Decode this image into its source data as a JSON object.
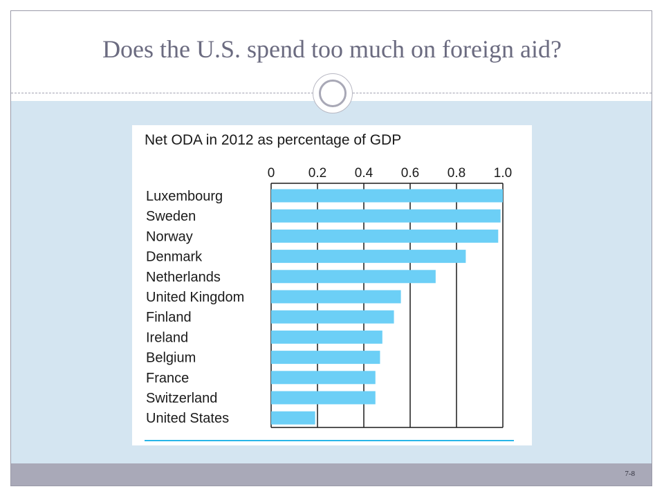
{
  "slide": {
    "title": "Does the U.S. spend too much on foreign aid?",
    "slide_number": "7-8",
    "colors": {
      "band": "#d4e5f1",
      "footer": "#a9a9b8",
      "title": "#6b6b80",
      "bar": "#6ccff6"
    }
  },
  "chart_data": {
    "type": "bar",
    "orientation": "horizontal",
    "title": "Net ODA in 2012 as percentage of GDP",
    "xlabel": "",
    "ylabel": "",
    "xlim": [
      0,
      1.0
    ],
    "x_ticks": [
      "0",
      "0.2",
      "0.4",
      "0.6",
      "0.8",
      "1.0"
    ],
    "grid": true,
    "categories": [
      "Luxembourg",
      "Sweden",
      "Norway",
      "Denmark",
      "Netherlands",
      "United Kingdom",
      "Finland",
      "Ireland",
      "Belgium",
      "France",
      "Switzerland",
      "United States"
    ],
    "values": [
      1.0,
      0.99,
      0.98,
      0.84,
      0.71,
      0.56,
      0.53,
      0.48,
      0.47,
      0.45,
      0.45,
      0.19
    ]
  }
}
